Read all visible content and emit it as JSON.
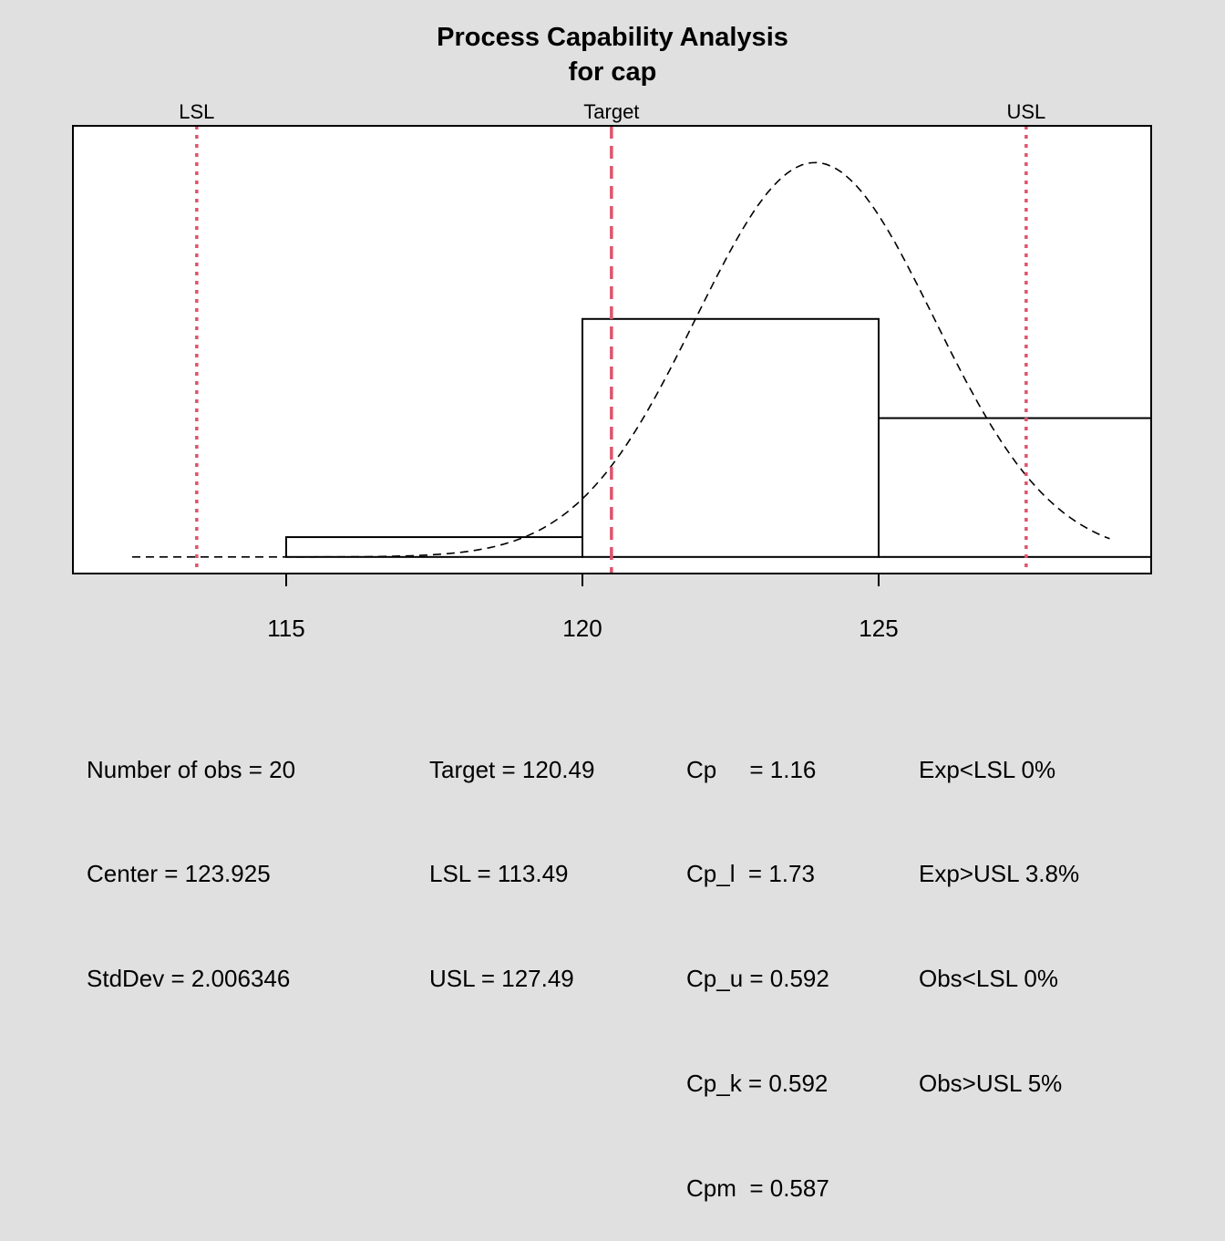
{
  "chart_data": {
    "type": "bar",
    "title": "Process Capability Analysis",
    "subtitle": "for cap",
    "xlim": [
      111.4,
      129.6
    ],
    "ylim": [
      0,
      0.209
    ],
    "x_ticks": [
      115,
      120,
      125
    ],
    "grid": false,
    "bins": [
      {
        "from": 115,
        "to": 120,
        "density": 0.01
      },
      {
        "from": 120,
        "to": 125,
        "density": 0.12
      },
      {
        "from": 125,
        "to": 130,
        "density": 0.07
      }
    ],
    "normal_curve": {
      "mean": 123.925,
      "sd": 2.006346,
      "x_range": [
        112.4,
        128.9
      ],
      "style": "dashed"
    },
    "spec_lines": [
      {
        "label": "LSL",
        "value": 113.49,
        "style": "dotted"
      },
      {
        "label": "Target",
        "value": 120.49,
        "style": "dashed"
      },
      {
        "label": "USL",
        "value": 127.49,
        "style": "dotted"
      }
    ],
    "spec_color": "#DF536B"
  },
  "stats": {
    "col1": [
      "Number of obs = 20",
      "Center = 123.925",
      "StdDev = 2.006346"
    ],
    "col2": [
      "Target = 120.49",
      "LSL = 113.49",
      "USL = 127.49"
    ],
    "col3": [
      "Cp     = 1.16",
      "Cp_l  = 1.73",
      "Cp_u = 0.592",
      "Cp_k = 0.592",
      "Cpm  = 0.587"
    ],
    "col4": [
      "Exp<LSL 0%",
      "Exp>USL 3.8%",
      "Obs<LSL 0%",
      "Obs>USL 5%"
    ]
  }
}
